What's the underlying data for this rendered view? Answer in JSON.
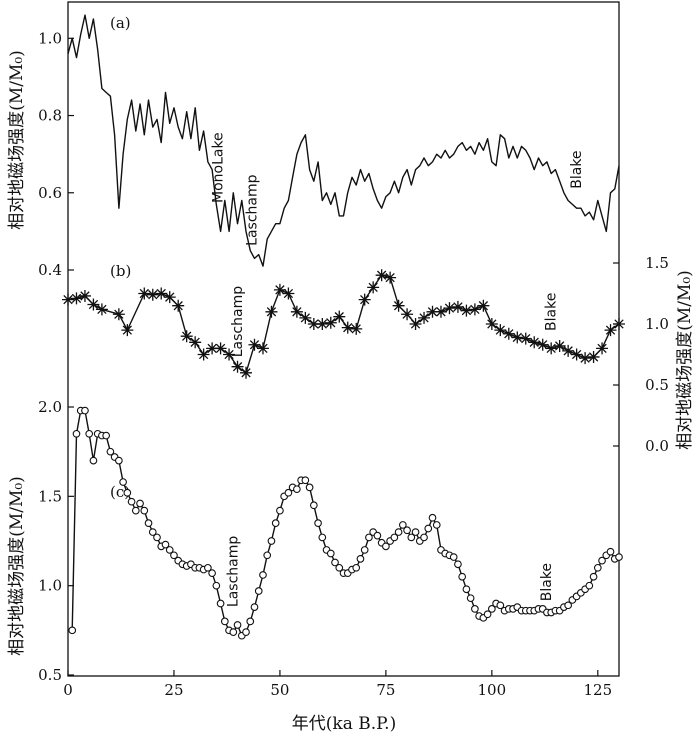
{
  "chart_data": {
    "type": "line",
    "xlabel": "年代(ka B.P.)",
    "xlim": [
      0,
      130
    ],
    "xticks": [
      0,
      25,
      50,
      75,
      100,
      125
    ],
    "panels": [
      {
        "label": "(a)",
        "ylabel": "相对地磁场强度(M/M₀)",
        "yaxis_side": "left",
        "ylim": [
          0.4,
          1.05
        ],
        "yticks": [
          "0.4",
          "0.6",
          "0.8",
          "1.0"
        ],
        "marker": "none",
        "events": [
          {
            "name": "MonoLake",
            "x": 36.5,
            "y": 0.665
          },
          {
            "name": "Laschamp",
            "x": 44.5,
            "y": 0.555
          },
          {
            "name": "Blake",
            "x": 121,
            "y": 0.66
          }
        ],
        "series": [
          {
            "x": [
              0,
              1,
              2,
              3,
              4,
              5,
              6,
              7,
              8,
              9,
              10,
              11,
              12,
              13,
              14,
              15,
              16,
              17,
              18,
              19,
              20,
              21,
              22,
              23,
              24,
              25,
              26,
              27,
              28,
              29,
              30,
              31,
              32,
              33,
              34,
              35,
              36,
              37,
              38,
              39,
              40,
              41,
              42,
              43,
              44,
              45,
              46,
              47,
              48,
              49,
              50,
              51,
              52,
              53,
              54,
              55,
              56,
              57,
              58,
              59,
              60,
              61,
              62,
              63,
              64,
              65,
              66,
              67,
              68,
              69,
              70,
              71,
              72,
              73,
              74,
              75,
              76,
              77,
              78,
              79,
              80,
              81,
              82,
              83,
              84,
              85,
              86,
              87,
              88,
              89,
              90,
              91,
              92,
              93,
              94,
              95,
              96,
              97,
              98,
              99,
              100,
              101,
              102,
              103,
              104,
              105,
              106,
              107,
              108,
              109,
              110,
              111,
              112,
              113,
              114,
              115,
              116,
              117,
              118,
              119,
              120,
              121,
              122,
              123,
              124,
              125,
              126,
              127,
              128,
              129,
              130
            ],
            "values": [
              0.96,
              1.0,
              0.95,
              1.01,
              1.06,
              1.0,
              1.05,
              0.97,
              0.87,
              0.86,
              0.85,
              0.75,
              0.56,
              0.7,
              0.79,
              0.84,
              0.76,
              0.83,
              0.75,
              0.84,
              0.77,
              0.79,
              0.73,
              0.86,
              0.78,
              0.82,
              0.77,
              0.74,
              0.81,
              0.74,
              0.82,
              0.71,
              0.76,
              0.68,
              0.66,
              0.57,
              0.5,
              0.58,
              0.5,
              0.6,
              0.52,
              0.58,
              0.5,
              0.45,
              0.43,
              0.44,
              0.41,
              0.48,
              0.5,
              0.52,
              0.52,
              0.56,
              0.58,
              0.64,
              0.7,
              0.73,
              0.75,
              0.66,
              0.63,
              0.68,
              0.58,
              0.6,
              0.57,
              0.6,
              0.54,
              0.54,
              0.6,
              0.64,
              0.62,
              0.66,
              0.63,
              0.65,
              0.61,
              0.58,
              0.56,
              0.59,
              0.6,
              0.63,
              0.6,
              0.64,
              0.66,
              0.62,
              0.66,
              0.67,
              0.69,
              0.67,
              0.68,
              0.7,
              0.69,
              0.71,
              0.69,
              0.7,
              0.72,
              0.73,
              0.71,
              0.72,
              0.7,
              0.73,
              0.71,
              0.74,
              0.68,
              0.67,
              0.75,
              0.74,
              0.69,
              0.72,
              0.69,
              0.72,
              0.71,
              0.69,
              0.66,
              0.69,
              0.67,
              0.68,
              0.65,
              0.66,
              0.63,
              0.6,
              0.58,
              0.57,
              0.56,
              0.56,
              0.54,
              0.55,
              0.53,
              0.58,
              0.54,
              0.5,
              0.6,
              0.61,
              0.67
            ]
          }
        ]
      },
      {
        "label": "(b)",
        "ylabel": "相对地磁场强度(M/M₀)",
        "yaxis_side": "right",
        "ylim": [
          0.0,
          1.5
        ],
        "yticks": [
          "0.0",
          "0.5",
          "1.0",
          "1.5"
        ],
        "marker": "asterisk",
        "events": [
          {
            "name": "Laschamp",
            "x": 41,
            "y": 1.02
          },
          {
            "name": "Blake",
            "x": 115,
            "y": 1.1
          }
        ],
        "series": [
          {
            "x": [
              0,
              2,
              4,
              6,
              8,
              12,
              14,
              18,
              20,
              22,
              24,
              26,
              28,
              30,
              32,
              34,
              36,
              38,
              40,
              42,
              44,
              46,
              48,
              50,
              52,
              54,
              56,
              58,
              60,
              62,
              64,
              66,
              68,
              70,
              72,
              74,
              76,
              78,
              80,
              82,
              84,
              86,
              88,
              90,
              92,
              94,
              96,
              98,
              100,
              102,
              104,
              106,
              108,
              110,
              112,
              114,
              116,
              118,
              120,
              122,
              124,
              126,
              128,
              130
            ],
            "values": [
              1.2,
              1.21,
              1.23,
              1.16,
              1.12,
              1.08,
              0.95,
              1.25,
              1.24,
              1.25,
              1.22,
              1.15,
              0.9,
              0.85,
              0.75,
              0.8,
              0.8,
              0.75,
              0.65,
              0.6,
              0.83,
              0.8,
              1.1,
              1.28,
              1.25,
              1.1,
              1.05,
              1.0,
              1.0,
              1.01,
              1.06,
              0.97,
              0.96,
              1.2,
              1.3,
              1.4,
              1.38,
              1.15,
              1.08,
              1.0,
              1.05,
              1.1,
              1.1,
              1.13,
              1.14,
              1.11,
              1.12,
              1.15,
              1.0,
              0.95,
              0.92,
              0.89,
              0.88,
              0.85,
              0.83,
              0.8,
              0.82,
              0.78,
              0.75,
              0.72,
              0.73,
              0.8,
              0.95,
              1.0
            ]
          }
        ]
      },
      {
        "label": "(c)",
        "ylabel": "相对地磁场强度(M/M₀)",
        "yaxis_side": "left",
        "ylim": [
          0.5,
          2.0
        ],
        "yticks": [
          "0.5",
          "1.0",
          "1.5",
          "2.0"
        ],
        "marker": "circle",
        "events": [
          {
            "name": "Laschamp",
            "x": 40,
            "y": 1.08
          },
          {
            "name": "Blake",
            "x": 114,
            "y": 1.02
          }
        ],
        "series": [
          {
            "x": [
              1,
              2,
              3,
              4,
              5,
              6,
              7,
              8,
              9,
              10,
              11,
              12,
              13,
              14,
              15,
              16,
              17,
              18,
              19,
              20,
              21,
              22,
              23,
              24,
              25,
              26,
              27,
              28,
              29,
              30,
              31,
              32,
              33,
              34,
              35,
              36,
              37,
              38,
              39,
              40,
              41,
              42,
              43,
              44,
              45,
              46,
              47,
              48,
              49,
              50,
              51,
              52,
              53,
              54,
              55,
              56,
              57,
              58,
              59,
              60,
              61,
              62,
              63,
              64,
              65,
              66,
              67,
              68,
              69,
              70,
              71,
              72,
              73,
              74,
              75,
              76,
              77,
              78,
              79,
              80,
              81,
              82,
              83,
              84,
              85,
              86,
              87,
              88,
              89,
              90,
              91,
              92,
              93,
              94,
              95,
              96,
              97,
              98,
              99,
              100,
              101,
              102,
              103,
              104,
              105,
              106,
              107,
              108,
              109,
              110,
              111,
              112,
              113,
              114,
              115,
              116,
              117,
              118,
              119,
              120,
              121,
              122,
              123,
              124,
              125,
              126,
              127,
              128,
              129,
              130
            ],
            "values": [
              0.75,
              1.85,
              1.98,
              1.98,
              1.85,
              1.7,
              1.85,
              1.84,
              1.84,
              1.75,
              1.72,
              1.7,
              1.58,
              1.52,
              1.47,
              1.42,
              1.46,
              1.42,
              1.35,
              1.3,
              1.27,
              1.22,
              1.23,
              1.2,
              1.17,
              1.14,
              1.12,
              1.11,
              1.12,
              1.1,
              1.1,
              1.09,
              1.1,
              1.07,
              1.0,
              0.9,
              0.8,
              0.75,
              0.74,
              0.78,
              0.72,
              0.74,
              0.8,
              0.88,
              0.97,
              1.06,
              1.17,
              1.25,
              1.35,
              1.42,
              1.5,
              1.52,
              1.55,
              1.54,
              1.59,
              1.59,
              1.55,
              1.45,
              1.35,
              1.27,
              1.2,
              1.18,
              1.13,
              1.1,
              1.07,
              1.07,
              1.09,
              1.1,
              1.15,
              1.2,
              1.27,
              1.3,
              1.28,
              1.24,
              1.22,
              1.25,
              1.27,
              1.3,
              1.34,
              1.31,
              1.27,
              1.3,
              1.25,
              1.27,
              1.32,
              1.38,
              1.34,
              1.2,
              1.18,
              1.17,
              1.16,
              1.12,
              1.05,
              0.98,
              0.93,
              0.87,
              0.83,
              0.82,
              0.84,
              0.87,
              0.9,
              0.89,
              0.86,
              0.87,
              0.87,
              0.88,
              0.86,
              0.86,
              0.86,
              0.86,
              0.87,
              0.87,
              0.85,
              0.85,
              0.86,
              0.86,
              0.88,
              0.89,
              0.92,
              0.94,
              0.96,
              0.98,
              1.0,
              1.05,
              1.1,
              1.14,
              1.17,
              1.19,
              1.15,
              1.16
            ]
          }
        ]
      }
    ]
  }
}
